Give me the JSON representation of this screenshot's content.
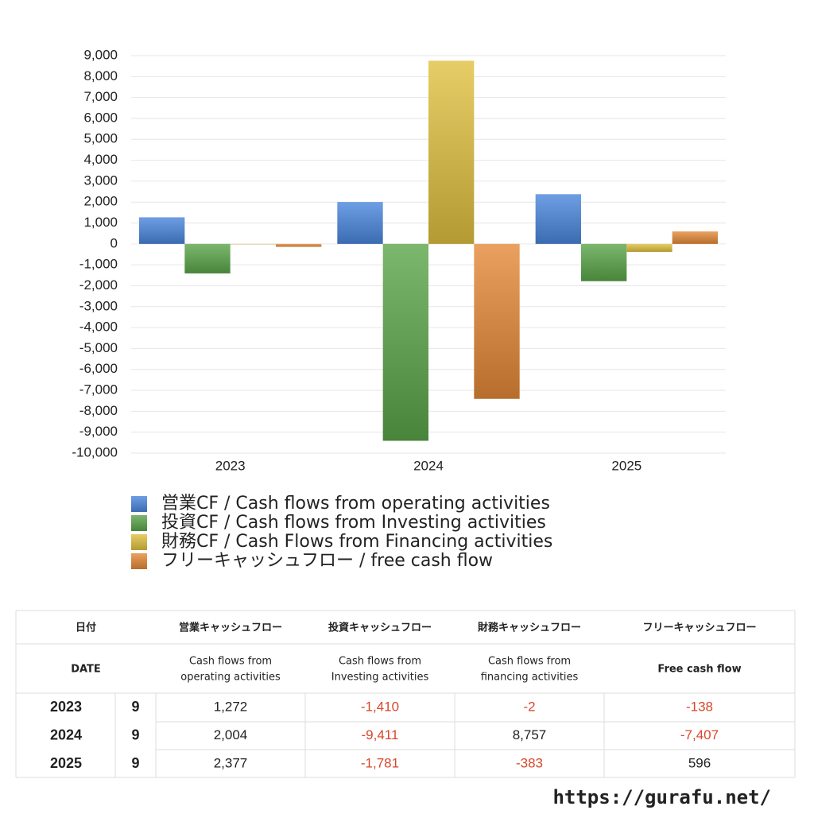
{
  "chart_data": {
    "type": "bar",
    "categories": [
      "2023",
      "2024",
      "2025"
    ],
    "series": [
      {
        "name": "営業CF / Cash flows from operating activities",
        "color": "#4a86dc",
        "values": [
          1272,
          2004,
          2377
        ]
      },
      {
        "name": "投資CF / Cash flows from Investing activities",
        "color": "#5aa548",
        "values": [
          -1410,
          -9411,
          -1781
        ]
      },
      {
        "name": "財務CF / Cash Flows from Financing activities",
        "color": "#e0c040",
        "values": [
          -2,
          8757,
          -383
        ]
      },
      {
        "name": "フリーキャッシュフロー / free cash flow",
        "color": "#e58a38",
        "values": [
          -138,
          -7407,
          596
        ]
      }
    ],
    "ylim": [
      -10000,
      9000
    ],
    "yticks": [
      {
        "value": -10000,
        "label": "-10,000"
      },
      {
        "value": -9000,
        "label": "-9,000"
      },
      {
        "value": -8000,
        "label": "-8,000"
      },
      {
        "value": -7000,
        "label": "-7,000"
      },
      {
        "value": -6000,
        "label": "-6,000"
      },
      {
        "value": -5000,
        "label": "-5,000"
      },
      {
        "value": -4000,
        "label": "-4,000"
      },
      {
        "value": -3000,
        "label": "-3,000"
      },
      {
        "value": -2000,
        "label": "-2,000"
      },
      {
        "value": -1000,
        "label": "-1,000"
      },
      0,
      {
        "value": 1000,
        "label": "1,000"
      },
      {
        "value": 2000,
        "label": "2,000"
      },
      {
        "value": 3000,
        "label": "3,000"
      },
      {
        "value": 4000,
        "label": "4,000"
      },
      {
        "value": 5000,
        "label": "5,000"
      },
      {
        "value": 6000,
        "label": "6,000"
      },
      {
        "value": 7000,
        "label": "7,000"
      },
      {
        "value": 8000,
        "label": "8,000"
      },
      {
        "value": 9000,
        "label": "9,000"
      }
    ],
    "grid": true
  },
  "table": {
    "header": [
      "日付",
      "営業キャッシュフロー",
      "投資キャッシュフロー",
      "財務キャッシュフロー",
      "フリーキャッシュフロー"
    ],
    "subheader": [
      [
        "DATE"
      ],
      [
        "Cash flows from",
        "operating activities"
      ],
      [
        "Cash flows from",
        "Investing activities"
      ],
      [
        "Cash flows from",
        "financing activities"
      ],
      [
        "Free cash flow"
      ]
    ],
    "rows": [
      [
        "2023",
        "9",
        "1,272",
        "-1,410",
        "-2",
        "-138"
      ],
      [
        "2024",
        "9",
        "2,004",
        "-9,411",
        "8,757",
        "-7,407"
      ],
      [
        "2025",
        "9",
        "2,377",
        "-1,781",
        "-383",
        "596"
      ]
    ],
    "negative_color": "#d9462a"
  },
  "footer": {
    "url": "https://gurafu.net/"
  }
}
